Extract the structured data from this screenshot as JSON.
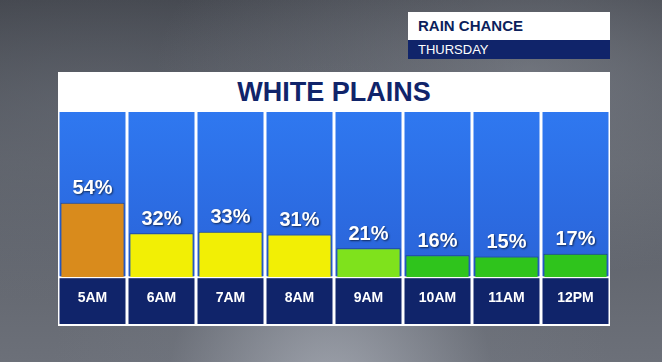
{
  "header": {
    "label": "RAIN CHANCE",
    "day": "THURSDAY"
  },
  "chart_data": {
    "type": "bar",
    "title": "WHITE PLAINS",
    "categories": [
      "5AM",
      "6AM",
      "7AM",
      "8AM",
      "9AM",
      "10AM",
      "11AM",
      "12PM"
    ],
    "values": [
      54,
      32,
      33,
      31,
      21,
      16,
      15,
      17
    ],
    "value_labels": [
      "54%",
      "32%",
      "33%",
      "31%",
      "21%",
      "16%",
      "15%",
      "17%"
    ],
    "colors": [
      "#d98b1c",
      "#f2ef05",
      "#f2ef05",
      "#f2ef05",
      "#7fe21c",
      "#2fc41c",
      "#2fc41c",
      "#2fc41c"
    ],
    "ylim": [
      0,
      120
    ],
    "grid": false,
    "data_labels": true,
    "tick_labels": "x"
  }
}
